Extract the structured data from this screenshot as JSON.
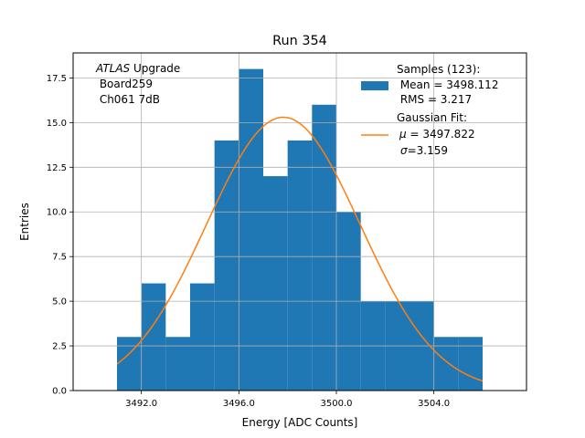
{
  "chart_data": {
    "type": "bar",
    "title": "Run 354",
    "xlabel": "Energy [ADC Counts]",
    "ylabel": "Entries",
    "xlim": [
      3489.2,
      3507.8
    ],
    "ylim": [
      0,
      18.9
    ],
    "grid": true,
    "x_ticks": [
      3492,
      3496,
      3500,
      3504
    ],
    "x_tick_labels": [
      "3492.0",
      "3496.0",
      "3500.0",
      "3504.0"
    ],
    "y_ticks": [
      0,
      2.5,
      5,
      7.5,
      10,
      12.5,
      15,
      17.5
    ],
    "y_tick_labels": [
      "0.0",
      "2.5",
      "5.0",
      "7.5",
      "10.0",
      "12.5",
      "15.0",
      "17.5"
    ],
    "bin_edges": [
      3491,
      3492,
      3493,
      3494,
      3495,
      3496,
      3497,
      3498,
      3499,
      3500,
      3501,
      3502,
      3503,
      3504,
      3505,
      3506
    ],
    "counts": [
      3,
      6,
      3,
      6,
      14,
      18,
      12,
      14,
      16,
      10,
      5,
      5,
      5,
      3,
      3
    ],
    "fit": {
      "type": "gaussian",
      "mu": 3497.822,
      "sigma": 3.159,
      "amplitude": 15.3,
      "x_range": [
        3491,
        3506
      ]
    },
    "colors": {
      "histogram": "#1f77b4",
      "fit": "#ff7f0e",
      "grid": "#b0b0b0"
    },
    "annotation": {
      "line1_italic": "ATLAS",
      "line1_rest": " Upgrade",
      "line2": " Board259",
      "line3": " Ch061 7dB"
    },
    "legend": {
      "position": "top-right",
      "samples_title": "Samples (123):",
      "samples_mean": " Mean = 3498.112",
      "samples_rms": " RMS = 3.217",
      "fit_title": "Gaussian Fit:",
      "fit_mu": " = 3497.822",
      "fit_sigma": "=3.159",
      "mu_symbol": "μ",
      "sigma_symbol": "σ"
    }
  }
}
